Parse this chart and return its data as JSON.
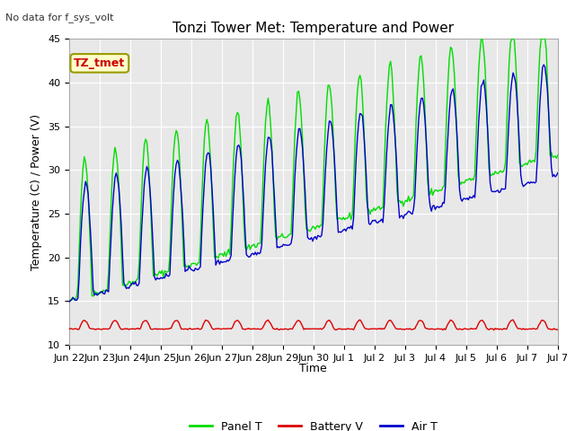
{
  "title": "Tonzi Tower Met: Temperature and Power",
  "ylabel": "Temperature (C) / Power (V)",
  "xlabel": "Time",
  "no_data_text": "No data for f_sys_volt",
  "label_text": "TZ_tmet",
  "ylim": [
    10,
    45
  ],
  "bg_color": "#e8e8e8",
  "panel_color": "#00dd00",
  "battery_color": "#dd0000",
  "air_color": "#0000cc",
  "legend_labels": [
    "Panel T",
    "Battery V",
    "Air T"
  ],
  "x_tick_labels": [
    "Jun 22",
    "Jun 23",
    "Jun 24",
    "Jun 25",
    "Jun 26",
    "Jun 27",
    "Jun 28",
    "Jun 29",
    "Jun 30",
    "Jul 1",
    "Jul 2",
    "Jul 3",
    "Jul 4",
    "Jul 5",
    "Jul 6",
    "Jul 7",
    "Jul 7"
  ],
  "n_days": 16
}
